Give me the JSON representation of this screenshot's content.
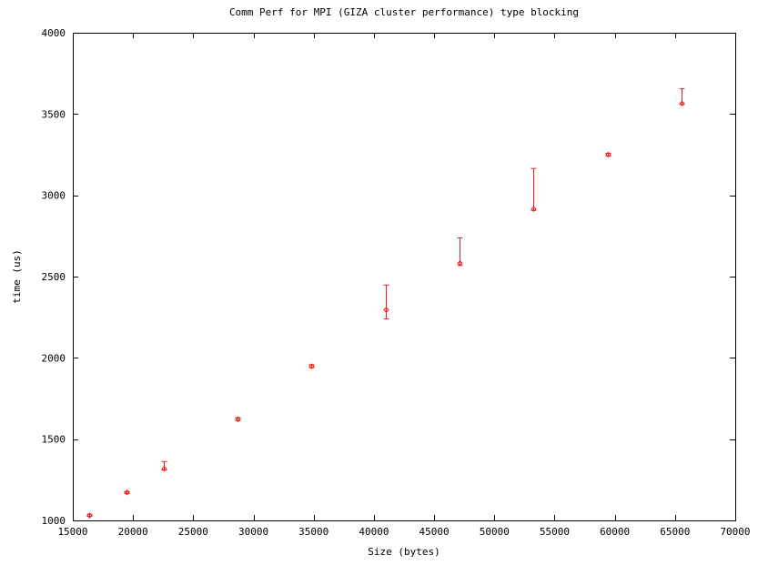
{
  "chart_data": {
    "type": "scatter",
    "title": "Comm Perf for MPI (GIZA cluster performance) type blocking",
    "xlabel": "Size (bytes)",
    "ylabel": "time (us)",
    "xlim": [
      15000,
      70000
    ],
    "ylim": [
      1000,
      4000
    ],
    "x_ticks": [
      15000,
      20000,
      25000,
      30000,
      35000,
      40000,
      45000,
      50000,
      55000,
      60000,
      65000,
      70000
    ],
    "y_ticks": [
      1000,
      1500,
      2000,
      2500,
      3000,
      3500,
      4000
    ],
    "grid": false,
    "legend": "none",
    "marker_color": "#e8201e",
    "series": [
      {
        "error_bars": true,
        "points": [
          {
            "x": 16384,
            "y": 1030,
            "ymin": 1025,
            "ymax": 1038
          },
          {
            "x": 19456,
            "y": 1172,
            "ymin": 1166,
            "ymax": 1178
          },
          {
            "x": 22528,
            "y": 1318,
            "ymin": 1310,
            "ymax": 1362
          },
          {
            "x": 28672,
            "y": 1622,
            "ymin": 1614,
            "ymax": 1632
          },
          {
            "x": 34816,
            "y": 1948,
            "ymin": 1940,
            "ymax": 1958
          },
          {
            "x": 40960,
            "y": 2295,
            "ymin": 2240,
            "ymax": 2448
          },
          {
            "x": 47104,
            "y": 2582,
            "ymin": 2568,
            "ymax": 2738
          },
          {
            "x": 53248,
            "y": 2915,
            "ymin": 2908,
            "ymax": 3165
          },
          {
            "x": 59392,
            "y": 3250,
            "ymin": 3242,
            "ymax": 3258
          },
          {
            "x": 65536,
            "y": 3565,
            "ymin": 3558,
            "ymax": 3655
          }
        ]
      }
    ]
  }
}
